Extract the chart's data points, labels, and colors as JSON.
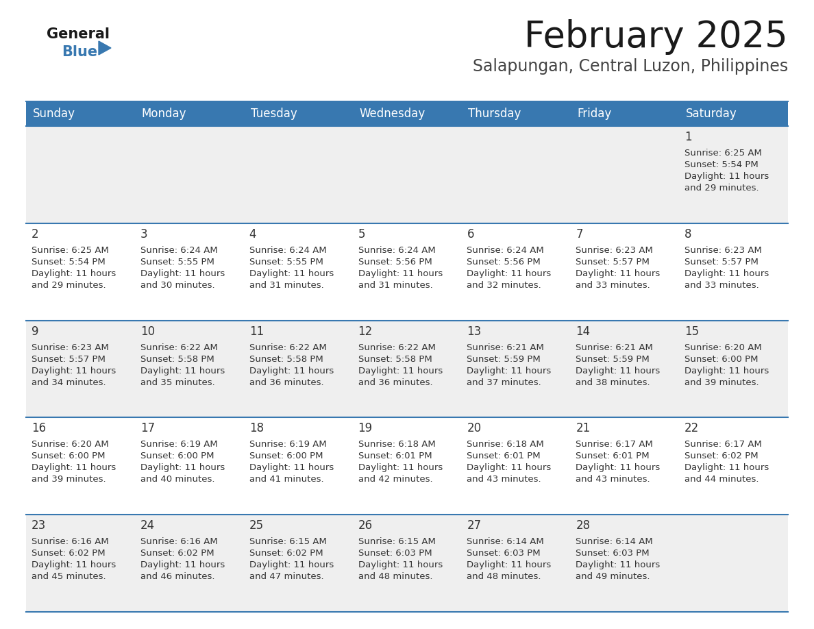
{
  "title": "February 2025",
  "subtitle": "Salapungan, Central Luzon, Philippines",
  "header_bg_color": "#3878b0",
  "header_text_color": "#ffffff",
  "row_bg_even": "#efefef",
  "row_bg_odd": "#ffffff",
  "border_color": "#3878b0",
  "day_number_color": "#333333",
  "text_color": "#333333",
  "weekdays": [
    "Sunday",
    "Monday",
    "Tuesday",
    "Wednesday",
    "Thursday",
    "Friday",
    "Saturday"
  ],
  "calendar_data": [
    [
      null,
      null,
      null,
      null,
      null,
      null,
      {
        "day": 1,
        "sunrise": "6:25 AM",
        "sunset": "5:54 PM",
        "daylight_hours": 11,
        "daylight_minutes": 29
      }
    ],
    [
      {
        "day": 2,
        "sunrise": "6:25 AM",
        "sunset": "5:54 PM",
        "daylight_hours": 11,
        "daylight_minutes": 29
      },
      {
        "day": 3,
        "sunrise": "6:24 AM",
        "sunset": "5:55 PM",
        "daylight_hours": 11,
        "daylight_minutes": 30
      },
      {
        "day": 4,
        "sunrise": "6:24 AM",
        "sunset": "5:55 PM",
        "daylight_hours": 11,
        "daylight_minutes": 31
      },
      {
        "day": 5,
        "sunrise": "6:24 AM",
        "sunset": "5:56 PM",
        "daylight_hours": 11,
        "daylight_minutes": 31
      },
      {
        "day": 6,
        "sunrise": "6:24 AM",
        "sunset": "5:56 PM",
        "daylight_hours": 11,
        "daylight_minutes": 32
      },
      {
        "day": 7,
        "sunrise": "6:23 AM",
        "sunset": "5:57 PM",
        "daylight_hours": 11,
        "daylight_minutes": 33
      },
      {
        "day": 8,
        "sunrise": "6:23 AM",
        "sunset": "5:57 PM",
        "daylight_hours": 11,
        "daylight_minutes": 33
      }
    ],
    [
      {
        "day": 9,
        "sunrise": "6:23 AM",
        "sunset": "5:57 PM",
        "daylight_hours": 11,
        "daylight_minutes": 34
      },
      {
        "day": 10,
        "sunrise": "6:22 AM",
        "sunset": "5:58 PM",
        "daylight_hours": 11,
        "daylight_minutes": 35
      },
      {
        "day": 11,
        "sunrise": "6:22 AM",
        "sunset": "5:58 PM",
        "daylight_hours": 11,
        "daylight_minutes": 36
      },
      {
        "day": 12,
        "sunrise": "6:22 AM",
        "sunset": "5:58 PM",
        "daylight_hours": 11,
        "daylight_minutes": 36
      },
      {
        "day": 13,
        "sunrise": "6:21 AM",
        "sunset": "5:59 PM",
        "daylight_hours": 11,
        "daylight_minutes": 37
      },
      {
        "day": 14,
        "sunrise": "6:21 AM",
        "sunset": "5:59 PM",
        "daylight_hours": 11,
        "daylight_minutes": 38
      },
      {
        "day": 15,
        "sunrise": "6:20 AM",
        "sunset": "6:00 PM",
        "daylight_hours": 11,
        "daylight_minutes": 39
      }
    ],
    [
      {
        "day": 16,
        "sunrise": "6:20 AM",
        "sunset": "6:00 PM",
        "daylight_hours": 11,
        "daylight_minutes": 39
      },
      {
        "day": 17,
        "sunrise": "6:19 AM",
        "sunset": "6:00 PM",
        "daylight_hours": 11,
        "daylight_minutes": 40
      },
      {
        "day": 18,
        "sunrise": "6:19 AM",
        "sunset": "6:00 PM",
        "daylight_hours": 11,
        "daylight_minutes": 41
      },
      {
        "day": 19,
        "sunrise": "6:18 AM",
        "sunset": "6:01 PM",
        "daylight_hours": 11,
        "daylight_minutes": 42
      },
      {
        "day": 20,
        "sunrise": "6:18 AM",
        "sunset": "6:01 PM",
        "daylight_hours": 11,
        "daylight_minutes": 43
      },
      {
        "day": 21,
        "sunrise": "6:17 AM",
        "sunset": "6:01 PM",
        "daylight_hours": 11,
        "daylight_minutes": 43
      },
      {
        "day": 22,
        "sunrise": "6:17 AM",
        "sunset": "6:02 PM",
        "daylight_hours": 11,
        "daylight_minutes": 44
      }
    ],
    [
      {
        "day": 23,
        "sunrise": "6:16 AM",
        "sunset": "6:02 PM",
        "daylight_hours": 11,
        "daylight_minutes": 45
      },
      {
        "day": 24,
        "sunrise": "6:16 AM",
        "sunset": "6:02 PM",
        "daylight_hours": 11,
        "daylight_minutes": 46
      },
      {
        "day": 25,
        "sunrise": "6:15 AM",
        "sunset": "6:02 PM",
        "daylight_hours": 11,
        "daylight_minutes": 47
      },
      {
        "day": 26,
        "sunrise": "6:15 AM",
        "sunset": "6:03 PM",
        "daylight_hours": 11,
        "daylight_minutes": 48
      },
      {
        "day": 27,
        "sunrise": "6:14 AM",
        "sunset": "6:03 PM",
        "daylight_hours": 11,
        "daylight_minutes": 48
      },
      {
        "day": 28,
        "sunrise": "6:14 AM",
        "sunset": "6:03 PM",
        "daylight_hours": 11,
        "daylight_minutes": 49
      },
      null
    ]
  ],
  "title_fontsize": 38,
  "subtitle_fontsize": 17,
  "header_fontsize": 12,
  "day_number_fontsize": 12,
  "cell_text_fontsize": 9.5,
  "logo_general_fontsize": 15,
  "logo_blue_fontsize": 15
}
